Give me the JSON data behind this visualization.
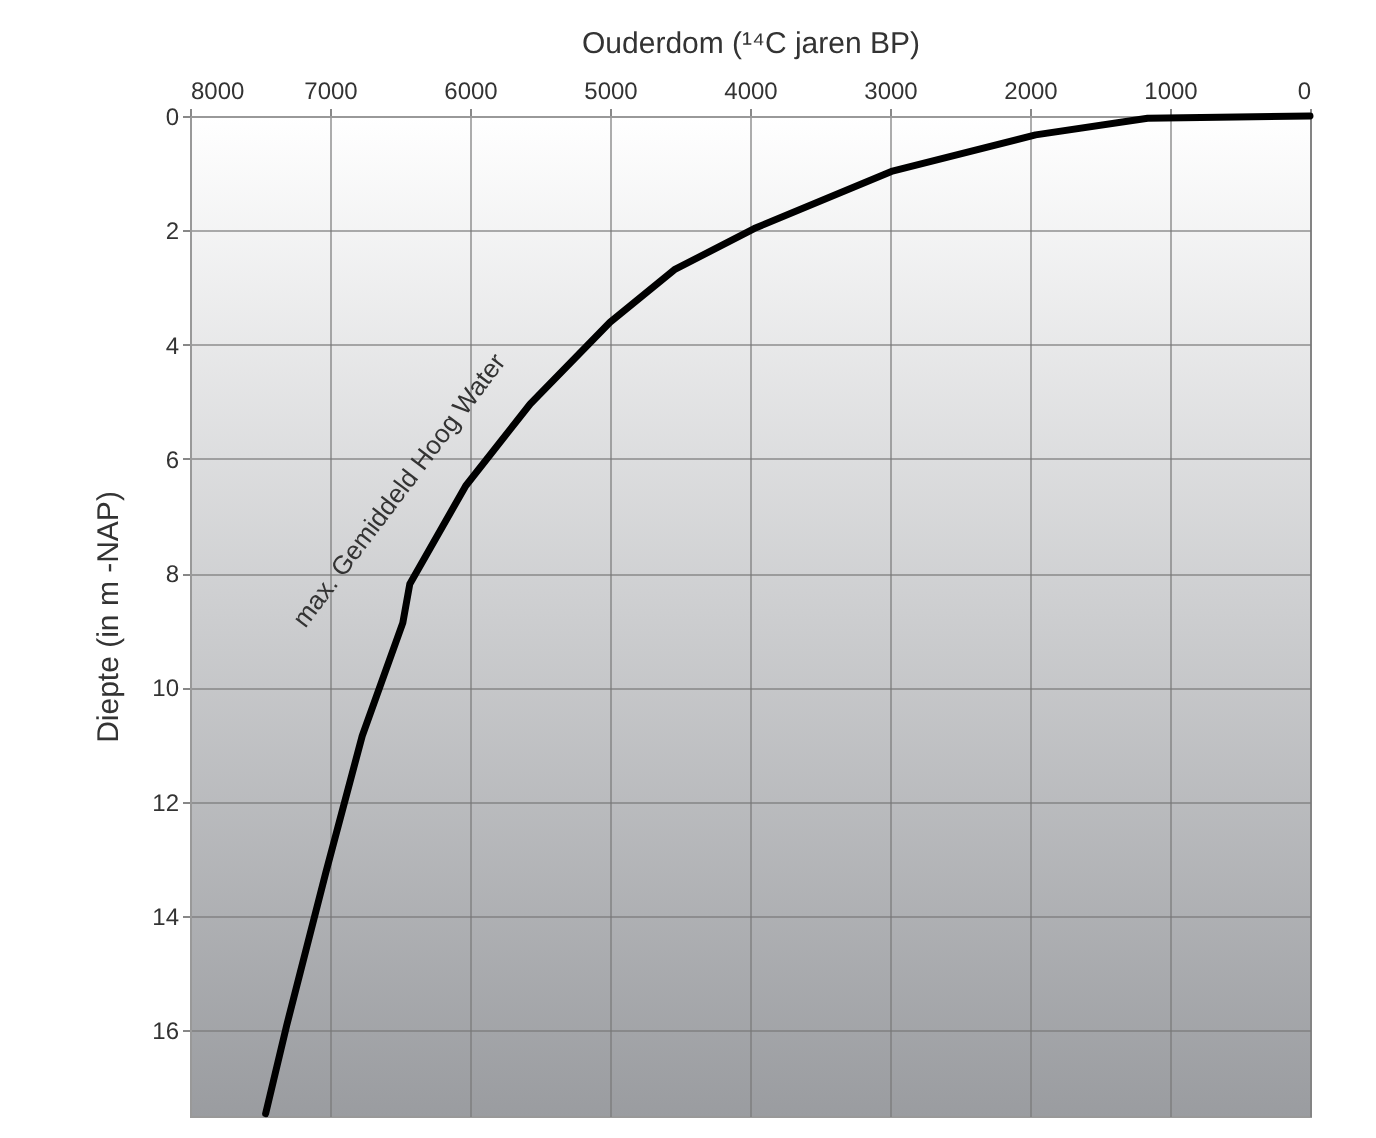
{
  "chart_data": {
    "type": "line",
    "xlabel": "Ouderdom (¹⁴C jaren BP)",
    "ylabel": "Diepte (in m -NAP)",
    "x": [
      0,
      1160,
      1960,
      2990,
      3970,
      4540,
      5000,
      5570,
      6030,
      6430,
      6480,
      6770,
      7030,
      7310,
      7460
    ],
    "series": [
      {
        "name": "max. Gemiddeld Hoog Water",
        "color": "#000000",
        "values": [
          0,
          0.04,
          0.33,
          0.97,
          1.97,
          2.69,
          3.61,
          5.04,
          6.47,
          8.19,
          8.87,
          10.85,
          13.24,
          15.92,
          17.46
        ]
      }
    ],
    "xlim": [
      8000,
      0
    ],
    "ylim": [
      17.5,
      0
    ],
    "xticks": [
      8000,
      7000,
      6000,
      5000,
      4000,
      3000,
      2000,
      1000,
      0
    ],
    "yticks": [
      0,
      2,
      4,
      6,
      8,
      10,
      12,
      14,
      16
    ],
    "grid": true,
    "marker": "none",
    "line_style": "solid"
  }
}
